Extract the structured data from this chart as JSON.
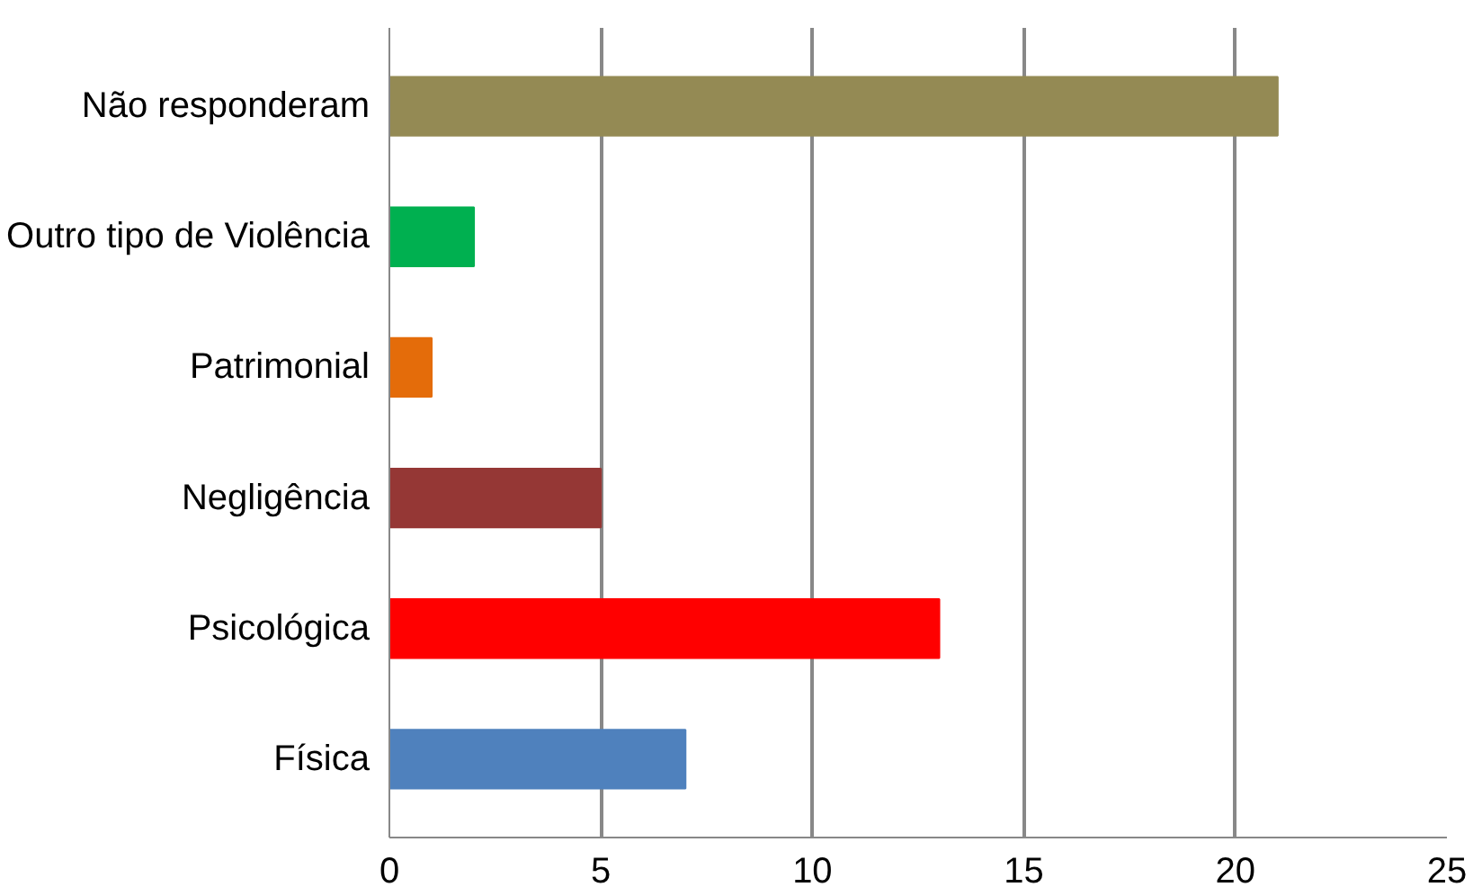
{
  "chart_data": {
    "type": "bar",
    "orientation": "horizontal",
    "categories": [
      "Não responderam",
      "Outro tipo de Violência",
      "Patrimonial",
      "Negligência",
      "Psicológica",
      "Física"
    ],
    "values": [
      21,
      2,
      1,
      5,
      13,
      7
    ],
    "colors": [
      "#948a54",
      "#00b050",
      "#e46c0a",
      "#953735",
      "#ff0000",
      "#4f81bd"
    ],
    "xlim": [
      0,
      25
    ],
    "xticks": [
      0,
      5,
      10,
      15,
      20,
      25
    ],
    "grid": "x"
  }
}
